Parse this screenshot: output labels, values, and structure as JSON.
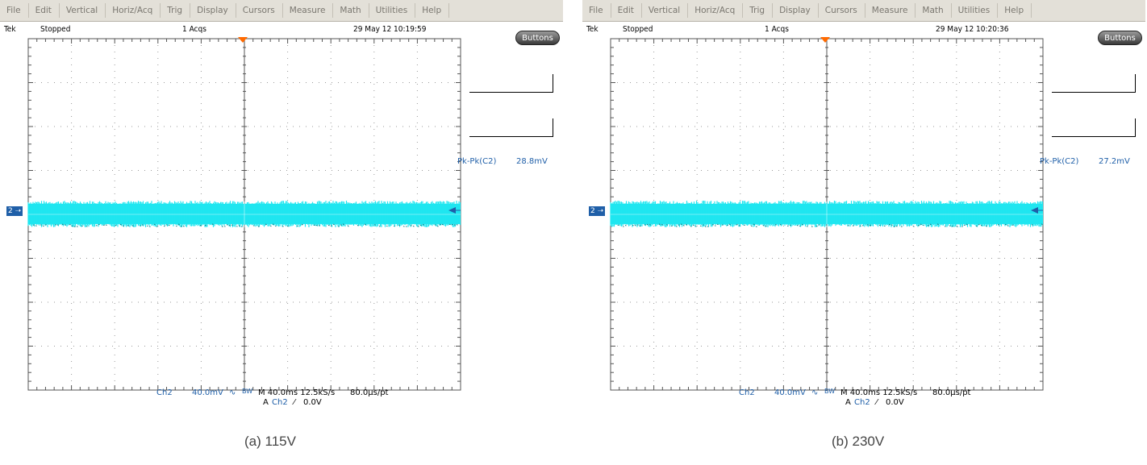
{
  "menu": [
    "File",
    "Edit",
    "Vertical",
    "Horiz/Acq",
    "Trig",
    "Display",
    "Cursors",
    "Measure",
    "Math",
    "Utilities",
    "Help"
  ],
  "colors": {
    "trace": "#1fe6f0",
    "accent": "#1f5fa8",
    "trigger_marker": "#ff6a00",
    "menubar": "#e3e0d8"
  },
  "panels": [
    {
      "brand": "Tek",
      "state": "Stopped",
      "acqs": "1 Acqs",
      "datetime": "29 May 12 10:19:59",
      "buttons_label": "Buttons",
      "measurement": {
        "label": "Pk-Pk(C2)",
        "value": "28.8mV"
      },
      "channel_marker": "2",
      "bottom": {
        "channel": "Ch2",
        "scale": "40.0mV",
        "bw": "BW",
        "timebase": "M 40.0ms 12.5kS/s",
        "resolution": "80.0µs/pt",
        "trigger_prefix": "A",
        "trigger_source": "Ch2",
        "trigger_slope": "⁄",
        "trigger_level": "0.0V"
      },
      "caption": "(a) 115V"
    },
    {
      "brand": "Tek",
      "state": "Stopped",
      "acqs": "1 Acqs",
      "datetime": "29 May 12 10:20:36",
      "buttons_label": "Buttons",
      "measurement": {
        "label": "Pk-Pk(C2)",
        "value": "27.2mV"
      },
      "channel_marker": "2",
      "bottom": {
        "channel": "Ch2",
        "scale": "40.0mV",
        "bw": "BW",
        "timebase": "M 40.0ms 12.5kS/s",
        "resolution": "80.0µs/pt",
        "trigger_prefix": "A",
        "trigger_source": "Ch2",
        "trigger_slope": "⁄",
        "trigger_level": "0.0V"
      },
      "caption": "(b) 230V"
    }
  ]
}
